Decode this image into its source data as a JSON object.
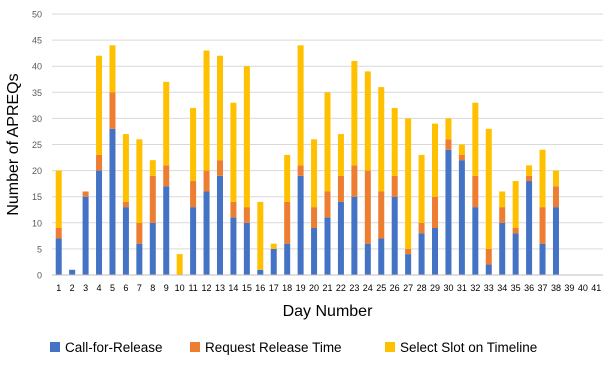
{
  "chart_data": {
    "type": "bar",
    "stacked": true,
    "xlabel": "Day Number",
    "ylabel": "Number of APREQs",
    "ylim": [
      0,
      50
    ],
    "yticks": [
      0,
      5,
      10,
      15,
      20,
      25,
      30,
      35,
      40,
      45,
      50
    ],
    "grid": "horizontal",
    "legend_position": "bottom",
    "categories": [
      "1",
      "2",
      "3",
      "4",
      "5",
      "6",
      "7",
      "8",
      "9",
      "10",
      "11",
      "12",
      "13",
      "14",
      "15",
      "16",
      "17",
      "18",
      "19",
      "20",
      "21",
      "22",
      "23",
      "24",
      "25",
      "26",
      "27",
      "28",
      "29",
      "30",
      "31",
      "32",
      "33",
      "34",
      "35",
      "36",
      "37",
      "38",
      "39",
      "40",
      "41"
    ],
    "series": [
      {
        "name": "Call-for-Release",
        "color": "#4472C4",
        "values": [
          7,
          1,
          15,
          20,
          28,
          13,
          6,
          10,
          17,
          0,
          13,
          16,
          19,
          11,
          10,
          1,
          5,
          6,
          19,
          9,
          11,
          14,
          15,
          6,
          7,
          15,
          4,
          8,
          9,
          24,
          22,
          13,
          2,
          10,
          8,
          18,
          6,
          13,
          0,
          0,
          0
        ]
      },
      {
        "name": "Request Release Time",
        "color": "#ED7D31",
        "values": [
          2,
          0,
          1,
          3,
          7,
          1,
          4,
          9,
          4,
          0,
          5,
          4,
          3,
          3,
          3,
          0,
          0,
          8,
          2,
          4,
          5,
          5,
          6,
          14,
          9,
          4,
          1,
          2,
          6,
          2,
          1,
          6,
          3,
          3,
          1,
          1,
          7,
          4,
          0,
          0,
          0
        ]
      },
      {
        "name": "Select Slot on Timeline",
        "color": "#FFC000",
        "values": [
          11,
          0,
          0,
          19,
          9,
          13,
          16,
          3,
          16,
          4,
          14,
          23,
          20,
          19,
          27,
          13,
          1,
          9,
          23,
          13,
          19,
          8,
          20,
          19,
          20,
          13,
          25,
          13,
          14,
          4,
          2,
          14,
          23,
          3,
          9,
          2,
          11,
          3,
          0,
          0,
          0
        ]
      }
    ]
  }
}
